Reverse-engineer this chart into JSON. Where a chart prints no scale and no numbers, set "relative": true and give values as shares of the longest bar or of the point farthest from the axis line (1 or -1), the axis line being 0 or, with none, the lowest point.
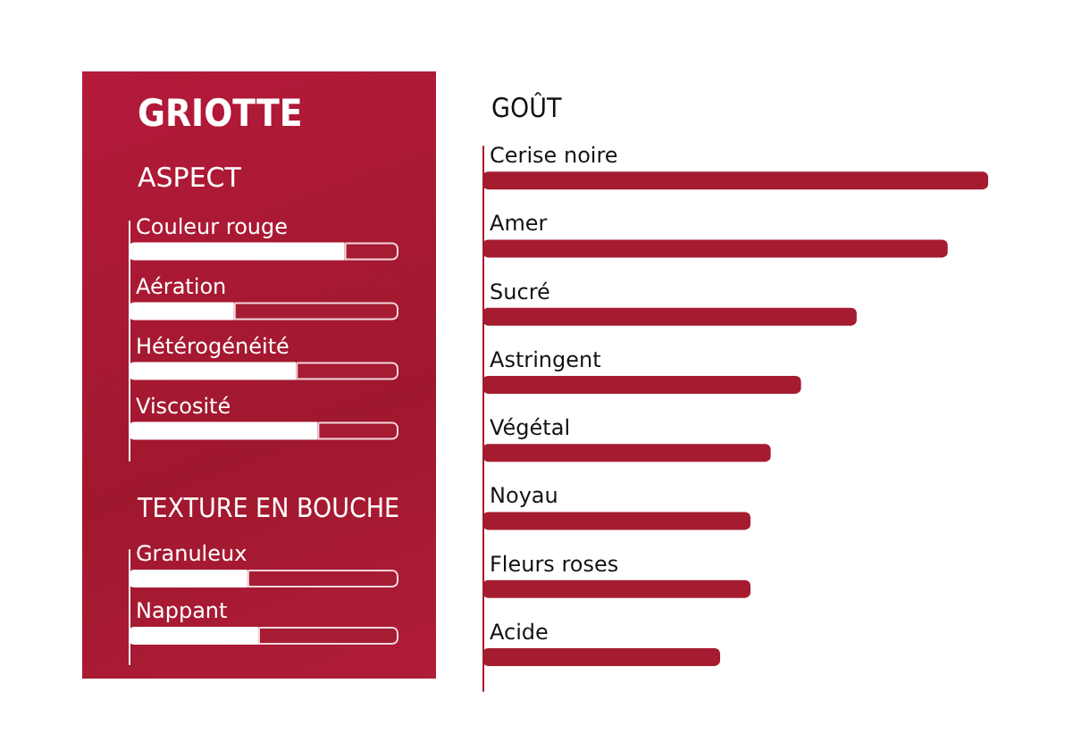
{
  "chart_data": [
    {
      "type": "bar",
      "orientation": "horizontal",
      "relative": true,
      "stacked": true,
      "title": "GRIOTTE",
      "subtitle": "ASPECT",
      "categories": [
        "Couleur rouge",
        "Aération",
        "Hétérogénéité",
        "Viscosité"
      ],
      "series": [
        {
          "color": "#ffffff",
          "values": [
            0.8,
            0.39,
            0.62,
            0.7
          ]
        },
        {
          "color": "#a51c33",
          "values": [
            0.2,
            0.61,
            0.38,
            0.3
          ]
        }
      ]
    },
    {
      "type": "bar",
      "orientation": "horizontal",
      "relative": true,
      "stacked": true,
      "title": "TEXTURE EN BOUCHE",
      "categories": [
        "Granuleux",
        "Nappant"
      ],
      "series": [
        {
          "color": "#ffffff",
          "values": [
            0.44,
            0.48
          ]
        },
        {
          "color": "#a51c33",
          "values": [
            0.56,
            0.52
          ]
        }
      ]
    },
    {
      "type": "bar",
      "orientation": "horizontal",
      "relative": true,
      "title": "GOÛT",
      "categories": [
        "Cerise noire",
        "Amer",
        "Sucré",
        "Astringent",
        "Végétal",
        "Noyau",
        "Fleurs roses",
        "Acide"
      ],
      "series": [
        {
          "color": "#a51c30",
          "values": [
            1,
            0.92,
            0.74,
            0.63,
            0.57,
            0.53,
            0.53,
            0.47
          ]
        }
      ]
    }
  ]
}
